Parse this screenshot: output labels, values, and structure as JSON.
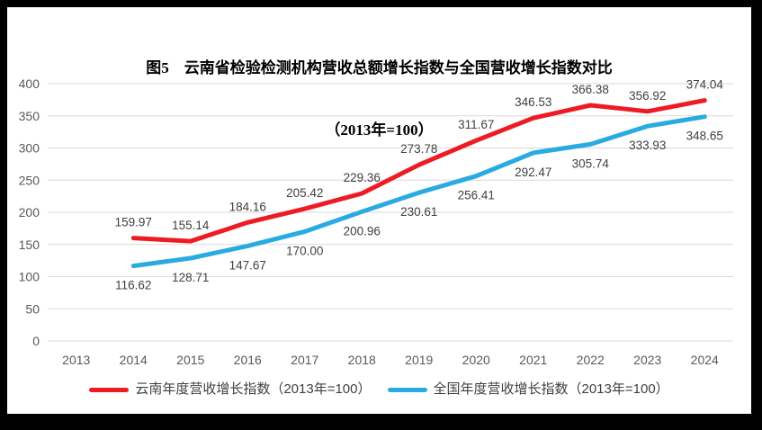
{
  "figure": {
    "title": "图5　云南省检验检测机构营收总额增长指数与全国营收增长指数对比",
    "subtitle": "（2013年=100）"
  },
  "colors": {
    "frame": "#000000",
    "background": "#FFFFFF",
    "grid": "#D9D9D9",
    "axis_text": "#595959",
    "label_text": "#404040",
    "series_yunnan": "#ED1C24",
    "series_national": "#29ABE2"
  },
  "chart_data": {
    "type": "line",
    "title": "图5　云南省检验检测机构营收总额增长指数与全国营收增长指数对比",
    "subtitle": "（2013年=100）",
    "categories": [
      "2013",
      "2014",
      "2015",
      "2016",
      "2017",
      "2018",
      "2019",
      "2020",
      "2021",
      "2022",
      "2023",
      "2024"
    ],
    "series": [
      {
        "name": "云南年度营收增长指数（2013年=100）",
        "color": "#ED1C24",
        "label_position": "above",
        "values": [
          null,
          159.97,
          155.14,
          184.16,
          205.42,
          229.36,
          273.78,
          311.67,
          346.53,
          366.38,
          356.92,
          374.04
        ]
      },
      {
        "name": "全国年度营收增长指数（2013年=100）",
        "color": "#29ABE2",
        "label_position": "below",
        "values": [
          null,
          116.62,
          128.71,
          147.67,
          170.0,
          200.96,
          230.61,
          256.41,
          292.47,
          305.74,
          333.93,
          348.65
        ]
      }
    ],
    "xlabel": "",
    "ylabel": "",
    "ylim": [
      0,
      400
    ],
    "ytick_step": 50,
    "grid": true,
    "legend_position": "bottom",
    "data_labels": true,
    "note": "no data point plotted for 2013 (base year = 100)"
  }
}
